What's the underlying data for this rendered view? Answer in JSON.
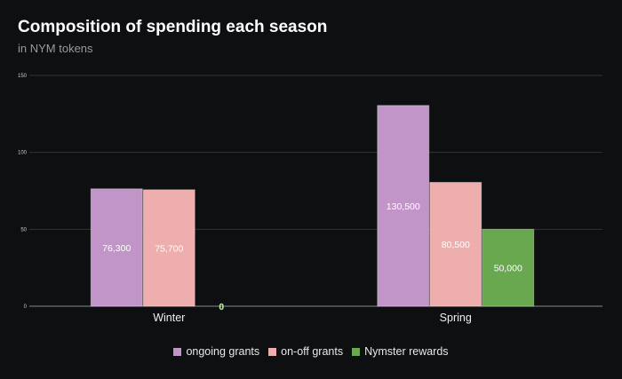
{
  "title": "Composition of spending each season",
  "subtitle": "in NYM tokens",
  "chart_data": {
    "type": "bar",
    "title": "Composition of spending each season",
    "subtitle": "in NYM tokens",
    "categories": [
      "Winter",
      "Spring"
    ],
    "ylim": [
      0,
      150
    ],
    "yticks": [
      0,
      50,
      100,
      150
    ],
    "grid": true,
    "legend_position": "bottom",
    "series": [
      {
        "name": "ongoing grants",
        "color": "#c295c9",
        "values": [
          76.3,
          130.5
        ],
        "labels": [
          "76,300",
          "130,500"
        ]
      },
      {
        "name": "on-off grants",
        "color": "#eeaead",
        "values": [
          75.7,
          80.5
        ],
        "labels": [
          "75,700",
          "80,500"
        ]
      },
      {
        "name": "Nymster rewards",
        "color": "#6aa84f",
        "values": [
          0,
          50
        ],
        "labels": [
          "0",
          "50,000"
        ]
      }
    ]
  }
}
